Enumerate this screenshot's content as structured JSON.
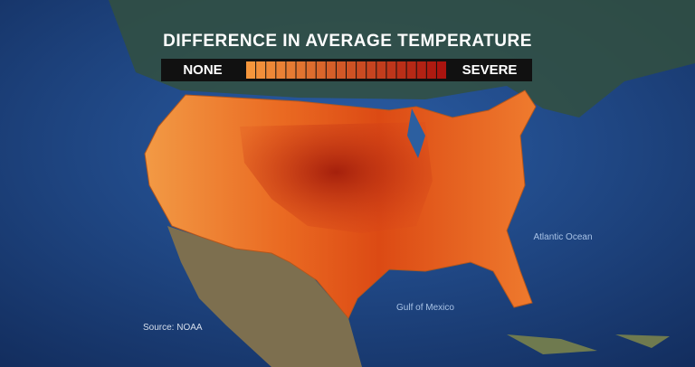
{
  "title": "DIFFERENCE IN AVERAGE TEMPERATURE",
  "legend": {
    "low": "NONE",
    "high": "SEVERE"
  },
  "places": {
    "atlantic": "Atlantic Ocean",
    "gulf": "Gulf of Mexico"
  },
  "source": "Source: NOAA"
}
